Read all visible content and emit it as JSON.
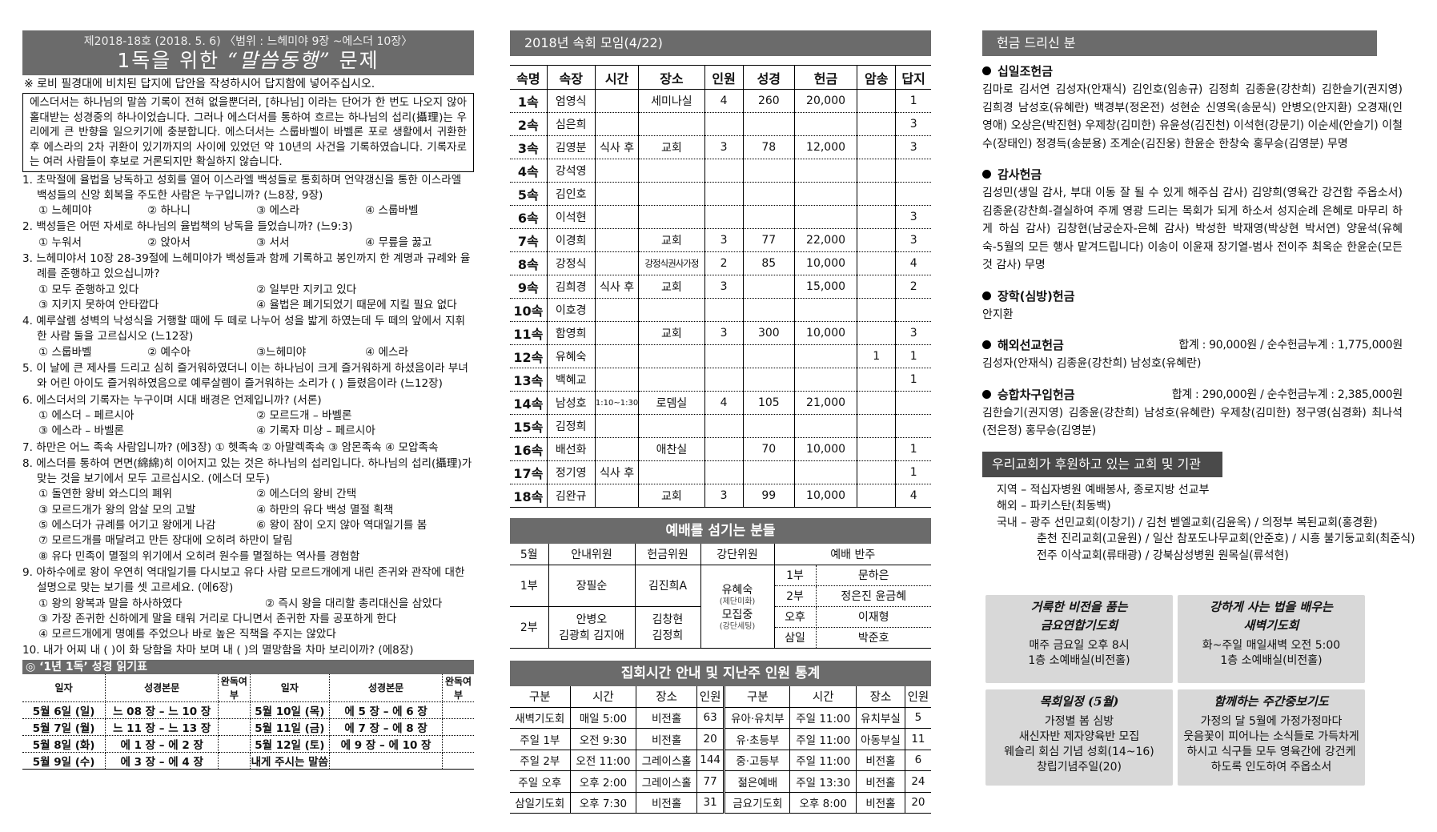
{
  "quiz": {
    "header_line": "제2018-18호  (2018. 5. 6)  〈범위 : 느헤미야 9장 ~에스더 10장〉",
    "title_pre": "1독을 위한 ",
    "title_script": "“말씀동행”",
    "title_post": " 문제",
    "note": "※ 로비 필경대에 비치된 답지에 답안을 작성하시어 답지함에 넣어주십시오.",
    "intro": "에스더서는 하나님의 말씀 기록이 전혀 없을뿐더러, [하나님] 이라는 단어가 한 번도 나오지 않아 홀대받는 성경중의 하나이었습니다. 그러나 에스더서를 통하여 흐르는 하나님의 섭리(攝理)는 우리에게 큰 반향을 일으키기에 충분합니다. 에스더서는 스룹바벨이 바벨론 포로 생활에서 귀환한 후 에스라의 2차 귀환이 있기까지의 사이에 있었던 약 10년의 사건을 기록하였습니다. 기록자로는 여러 사람들이 후보로 거론되지만 확실하지 않습니다.",
    "questions": [
      {
        "text": "1. 초막절에 율법을 낭독하고 성회를 열어 이스라엘 백성들로 통회하며 언약갱신을 통한 이스라엘 백성들의 신앙 회복을 주도한 사람은 누구입니까? (느8장, 9장)",
        "cols": 4,
        "options": [
          "① 느헤미야",
          "② 하나니",
          "③ 에스라",
          "④ 스룹바벨"
        ]
      },
      {
        "text": "2. 백성들은 어떤 자세로 하나님의 율법책의 낭독을 들었습니까? (느9:3)",
        "cols": 4,
        "options": [
          "① 누워서",
          "② 앉아서",
          "③ 서서",
          "④ 무릎을 꿇고"
        ]
      },
      {
        "text": "3. 느헤미야서 10장 28-39절에 느헤미야가 백성들과 함께 기록하고 봉인까지 한 계명과 규례와 율례를 준행하고 있으십니까?",
        "cols": 2,
        "options": [
          "① 모두 준행하고 있다",
          "② 일부만 지키고 있다",
          "③ 지키지 못하여 안타깝다",
          "④ 율법은 폐기되었기 때문에 지킬 필요 없다"
        ]
      },
      {
        "text": "4. 예루살렘 성벽의 낙성식을 거행할 때에 두 떼로 나누어 성을 밟게 하였는데 두 떼의 앞에서 지휘한 사람 둘을 고르십시오 (느12장)",
        "cols": 4,
        "options": [
          "① 스룹바벨",
          "② 예수아",
          "③느헤미야",
          "④ 에스라"
        ]
      },
      {
        "text": "5. 이 날에 큰 제사를 드리고 심히 즐거워하였더니 이는 하나님이 크게 즐거워하게 하셨음이라 부녀와 어린 아이도 즐거워하였음으로 예루살렘이 즐거워하는 소리가 (    ) 들렸음이라 (느12장)",
        "cols": 4,
        "options": []
      },
      {
        "text": "6. 에스더서의 기록자는 누구이며 시대 배경은 언제입니까? (서론)",
        "cols": 2,
        "options": [
          "① 에스더 – 페르시아",
          "② 모르드개 – 바벨론",
          "③ 에스라 – 바벨론",
          "④ 기록자 미상 – 페르시아"
        ]
      },
      {
        "text": "7. 하만은 어느 족속 사람입니까? (에3장) ① 헷족속 ② 아말렉족속 ③ 암몬족속 ④ 모압족속",
        "cols": 4,
        "options": []
      },
      {
        "text": "8. 에스더를 통하여 면면(綿綿)히 이어지고 있는 것은 하나님의 섭리입니다. 하나님의 섭리(攝理)가 맞는 것을 보기에서 모두 고르십시오. (에스더 모두)",
        "cols": 2,
        "options": [
          "① 돌연한 왕비 와스디의 폐위",
          "② 에스더의 왕비 간택",
          "③ 모르드개가 왕의 암살 모의 고발",
          "④ 하만의 유다 백성 멸절 획책",
          "⑤ 에스더가 규례를 어기고 왕에게 나감",
          "⑥ 왕이 잠이 오지 않아 역대일기를 봄",
          "⑦ 모르드개를 매달려고 만든 장대에 오히려 하만이 달림",
          "⑧ 유다 민족이 멸절의 위기에서 오히려 원수를 멸절하는 역사를 경험함"
        ]
      },
      {
        "text": "9. 아하수에로 왕이 우연히 역대일기를 다시보고 유다 사람 모르드개에게 내린 존귀와 관작에 대한 설명으로 맞는 보기를 셋 고르세요. (에6장)",
        "cols": 2,
        "options": [
          "① 왕의 왕복과 말을 하사하였다",
          "② 즉시 왕을 대리할 총리대신을 삼았다",
          "③ 가장 존귀한 신하에게 말을 태워 거리로 다니면서 존귀한 자를 공포하게 한다",
          "④ 모르드개에게 명예를 주었으나 바로 높은 직책을 주지는 않았다"
        ]
      },
      {
        "text": "10. 내가 어찌 내 (    )이 화 당함을 차마 보며 내 (    )의 멸망함을 차마 보리이까? (에8장)",
        "cols": 4,
        "options": []
      }
    ]
  },
  "reading": {
    "title": "◎ ‘1년 1독’  성경 읽기표",
    "headers": [
      "일자",
      "성경본문",
      "완독여부",
      "일자",
      "성경본문",
      "완독여부"
    ],
    "rows": [
      [
        "5월 6일 (일)",
        "느 08 장 – 느 10 장",
        "",
        "5월 10일 (목)",
        "에 5 장 – 에 6 장",
        ""
      ],
      [
        "5월 7일 (월)",
        "느 11 장 – 느 13 장",
        "",
        "5월 11일 (금)",
        "에 7 장 – 에 8 장",
        ""
      ],
      [
        "5월 8일 (화)",
        "에 1 장 – 에 2 장",
        "",
        "5월 12일 (토)",
        "에 9 장 – 에 10 장",
        ""
      ],
      [
        "5월 9일 (수)",
        "에 3 장 – 에 4 장",
        "",
        "내게 주시는 말씀",
        "",
        ""
      ]
    ]
  },
  "cell": {
    "title": "2018년 속회 모임(4/22)",
    "headers": [
      "속명",
      "속장",
      "시간",
      "장소",
      "인원",
      "성경",
      "헌금",
      "암송",
      "답지"
    ],
    "rows": [
      [
        "1속",
        "엄영식",
        "",
        "세미나실",
        "4",
        "260",
        "20,000",
        "",
        "1"
      ],
      [
        "2속",
        "심은희",
        "",
        "",
        "",
        "",
        "",
        "",
        "3"
      ],
      [
        "3속",
        "김영분",
        "식사 후",
        "교회",
        "3",
        "78",
        "12,000",
        "",
        "3"
      ],
      [
        "4속",
        "강석영",
        "",
        "",
        "",
        "",
        "",
        "",
        ""
      ],
      [
        "5속",
        "김인호",
        "",
        "",
        "",
        "",
        "",
        "",
        ""
      ],
      [
        "6속",
        "이석현",
        "",
        "",
        "",
        "",
        "",
        "",
        "3"
      ],
      [
        "7속",
        "이경희",
        "",
        "교회",
        "3",
        "77",
        "22,000",
        "",
        "3"
      ],
      [
        "8속",
        "강정식",
        "",
        "강정식권사가정",
        "2",
        "85",
        "10,000",
        "",
        "4"
      ],
      [
        "9속",
        "김희경",
        "식사 후",
        "교회",
        "3",
        "",
        "15,000",
        "",
        "2"
      ],
      [
        "10속",
        "이호경",
        "",
        "",
        "",
        "",
        "",
        "",
        ""
      ],
      [
        "11속",
        "함영희",
        "",
        "교회",
        "3",
        "300",
        "10,000",
        "",
        "3"
      ],
      [
        "12속",
        "유혜숙",
        "",
        "",
        "",
        "",
        "",
        "1",
        "1"
      ],
      [
        "13속",
        "백혜교",
        "",
        "",
        "",
        "",
        "",
        "",
        "1"
      ],
      [
        "14속",
        "남성호",
        "1:10~1:30",
        "로뎀실",
        "4",
        "105",
        "21,000",
        "",
        ""
      ],
      [
        "15속",
        "김정희",
        "",
        "",
        "",
        "",
        "",
        "",
        ""
      ],
      [
        "16속",
        "배선화",
        "",
        "애찬실",
        "",
        "70",
        "10,000",
        "",
        "1"
      ],
      [
        "17속",
        "정기영",
        "식사 후",
        "",
        "",
        "",
        "",
        "",
        "1"
      ],
      [
        "18속",
        "김완규",
        "",
        "교회",
        "3",
        "99",
        "10,000",
        "",
        "4"
      ]
    ]
  },
  "worship": {
    "title": "예배를 섬기는 분들",
    "headers": [
      "5월",
      "안내위원",
      "헌금위원",
      "강단위원",
      "예배 반주"
    ],
    "row1": {
      "label": "1부",
      "guide": "장필순",
      "offering": "김진희A"
    },
    "row2": {
      "label": "2부",
      "guide1": "안병오",
      "guide2": "김광희 김지애",
      "offering1": "김창현",
      "offering2": "김정희"
    },
    "altar": [
      {
        "name": "유혜숙",
        "role": "(제단미화)"
      },
      {
        "name": "모집중",
        "role": "(강단세팅)"
      }
    ],
    "accompany": [
      [
        "1부",
        "문하은"
      ],
      [
        "2부",
        "정은진 윤금혜"
      ],
      [
        "오후",
        "이재형"
      ],
      [
        "삼일",
        "박준호"
      ]
    ]
  },
  "gather": {
    "title": "집회시간 안내 및 지난주 인원 통계",
    "headers": [
      "구분",
      "시간",
      "장소",
      "인원",
      "구분",
      "시간",
      "장소",
      "인원"
    ],
    "rows": [
      [
        "새벽기도회",
        "매일 5:00",
        "비전홀",
        "63",
        "유아·유치부",
        "주일 11:00",
        "유치부실",
        "5"
      ],
      [
        "주일 1부",
        "오전 9:30",
        "비전홀",
        "20",
        "유·초등부",
        "주일 11:00",
        "아동부실",
        "11"
      ],
      [
        "주일 2부",
        "오전 11:00",
        "그레이스홀",
        "144",
        "중·고등부",
        "주일 11:00",
        "비전홀",
        "6"
      ],
      [
        "주일 오후",
        "오후 2:00",
        "그레이스홀",
        "77",
        "젊은예배",
        "주일 13:30",
        "비전홀",
        "24"
      ],
      [
        "삼일기도회",
        "오후 7:30",
        "비전홀",
        "31",
        "금요기도회",
        "오후 8:00",
        "비전홀",
        "20"
      ]
    ]
  },
  "offerings": {
    "title": "헌금 드리신 분",
    "sections": [
      {
        "name": "십일조헌금",
        "total": "",
        "names": "김마로 김서연 김성자(안재식) 김인호(임송규) 김정희 김종윤(강찬희) 김한슬기(권지영) 김희경 남성호(유혜란) 백경부(정온전) 성현순 신영옥(송문식) 안병오(안지환) 오경재(인영애) 오상은(박진현) 우제창(김미한) 유윤성(김진천) 이석현(강문기) 이순세(안슬기) 이철수(장태인) 정경득(송분용) 조계순(김진웅) 한윤순 한창숙 홍무승(김영분) 무명"
      },
      {
        "name": "감사헌금",
        "total": "",
        "names": "김성민(생일 감사, 부대 이동 잘 될 수 있게 해주심 감사) 김양희(영육간 강건함 주옵소서) 김종윤(강찬희-결실하여 주께 영광 드리는 목회가 되게 하소서 성지순례 은혜로 마무리 하게 하심 감사) 김창현(남궁순자-은혜 감사) 박성한 박재영(박상현 박서연) 양윤석(유혜숙-5월의 모든 행사 맡겨드립니다) 이송이 이윤재 장기열-범사 전이주 최옥순 한윤순(모든 것 감사) 무명"
      },
      {
        "name": "장학(심방)헌금",
        "total": "",
        "names": "안지환"
      },
      {
        "name": "해외선교헌금",
        "total": "합계 : 90,000원 / 순수헌금누계 : 1,775,000원",
        "names": "김성자(안재식)  김종윤(강찬희)  남성호(유혜란)"
      },
      {
        "name": "승합차구입헌금",
        "total": "합계 : 290,000원 / 순수헌금누계 :  2,385,000원",
        "names": "김한슬기(권지영)  김종윤(강찬희)  남성호(유혜란)  우제창(김미한)  정구영(심경화) 최나석(전은정)  홍무승(김영분)"
      }
    ]
  },
  "support": {
    "title": "우리교회가 후원하고 있는 교회 및 기관",
    "lines": [
      "지역 – 적십자병원 예배봉사, 종로지방 선교부",
      "해외 – 파키스탄(최동백)",
      "국내 – 광주 선민교회(이창기) / 김천 벧엘교회(김윤옥) / 의정부 복된교회(홍경환)",
      "춘천 진리교회(고윤원) / 일산 참포도나무교회(안준호) / 시흥 불기둥교회(최준식)",
      "전주 이삭교회(류태광) / 강북삼성병원 원목실(류석현)"
    ]
  },
  "boxes": [
    {
      "title1": "거룩한 비전을 품는",
      "title2": "금요연합기도회",
      "lines": [
        "매주 금요일 오후 8시",
        "1층 소예배실(비전홀)"
      ]
    },
    {
      "title1": "강하게 사는 법을 배우는",
      "title2": "새벽기도회",
      "lines": [
        "화~주일 매일새벽 오전 5:00",
        "1층 소예배실(비전홀)"
      ]
    },
    {
      "title1": "목회일정 (5월)",
      "title2": "",
      "lines": [
        "가정별 봄 심방",
        "새신자반 제자양육반 모집",
        "웨슬리 회심 기념 성회(14~16)",
        "창립기념주일(20)"
      ]
    },
    {
      "title1": "함께하는 주간중보기도",
      "title2": "",
      "lines": [
        "가정의 달 5월에 가정가정마다",
        "웃음꽃이 피어나는 소식들로 가득차게",
        "하시고 식구들 모두 영육간에 강건케",
        "하도록 인도하여 주옵소서"
      ]
    }
  ],
  "colors": {
    "header_bar": "#6b6b6b",
    "dark_bar": "#4a4a4a",
    "box_bg": "#d8d8d8"
  }
}
